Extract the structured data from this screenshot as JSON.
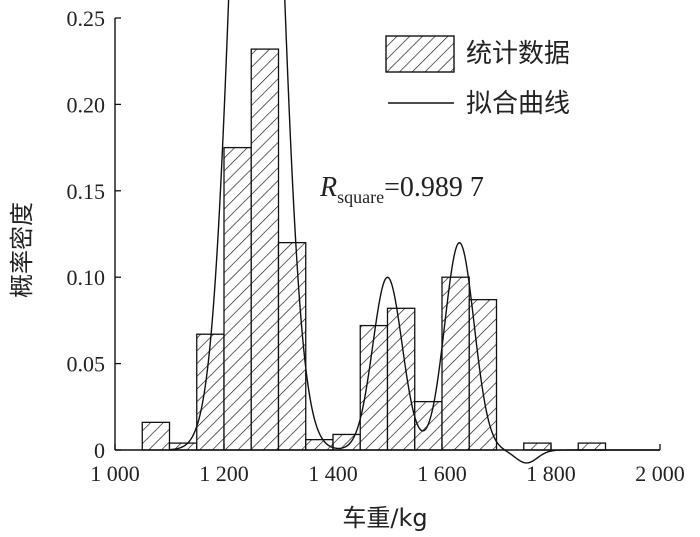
{
  "chart_data": {
    "type": "bar",
    "xlabel": "车重/kg",
    "ylabel": "概率密度",
    "xlim": [
      1000,
      2000
    ],
    "ylim": [
      0,
      0.25
    ],
    "x_ticks": [
      1000,
      1200,
      1400,
      1600,
      1800,
      2000
    ],
    "x_tick_labels": [
      "1 000",
      "1 200",
      "1 400",
      "1 600",
      "1 800",
      "2 000"
    ],
    "y_ticks": [
      0,
      0.05,
      0.1,
      0.15,
      0.2,
      0.25
    ],
    "y_tick_labels": [
      "0",
      "0.05",
      "0.10",
      "0.15",
      "0.20",
      "0.25"
    ],
    "bin_width": 50,
    "series": [
      {
        "name": "统计数据",
        "kind": "histogram",
        "bins": [
          {
            "start": 1050,
            "end": 1100,
            "value": 0.016
          },
          {
            "start": 1100,
            "end": 1150,
            "value": 0.004
          },
          {
            "start": 1150,
            "end": 1200,
            "value": 0.067
          },
          {
            "start": 1200,
            "end": 1250,
            "value": 0.175
          },
          {
            "start": 1250,
            "end": 1300,
            "value": 0.232
          },
          {
            "start": 1300,
            "end": 1350,
            "value": 0.12
          },
          {
            "start": 1350,
            "end": 1400,
            "value": 0.006
          },
          {
            "start": 1400,
            "end": 1450,
            "value": 0.009
          },
          {
            "start": 1450,
            "end": 1500,
            "value": 0.072
          },
          {
            "start": 1500,
            "end": 1550,
            "value": 0.082
          },
          {
            "start": 1550,
            "end": 1600,
            "value": 0.028
          },
          {
            "start": 1600,
            "end": 1650,
            "value": 0.1
          },
          {
            "start": 1650,
            "end": 1700,
            "value": 0.087
          },
          {
            "start": 1750,
            "end": 1800,
            "value": 0.004
          },
          {
            "start": 1850,
            "end": 1900,
            "value": 0.004
          }
        ]
      },
      {
        "name": "拟合曲线",
        "kind": "line",
        "components": [
          {
            "weight": 0.5976,
            "mean": 1260,
            "sd": 40
          },
          {
            "weight": 0.1,
            "mean": 1500,
            "sd": 27
          },
          {
            "weight": 0.12,
            "mean": 1632,
            "sd": 27
          }
        ],
        "dip": {
          "at": 1755,
          "depth": -0.0075,
          "width": 20
        },
        "x_range": [
          1100,
          2000
        ]
      }
    ],
    "legend": {
      "position": "top-right",
      "entries": [
        "统计数据",
        "拟合曲线"
      ]
    },
    "annotation": {
      "main": "R",
      "sub": "square",
      "value": "=0.989 7"
    },
    "grid": false
  }
}
